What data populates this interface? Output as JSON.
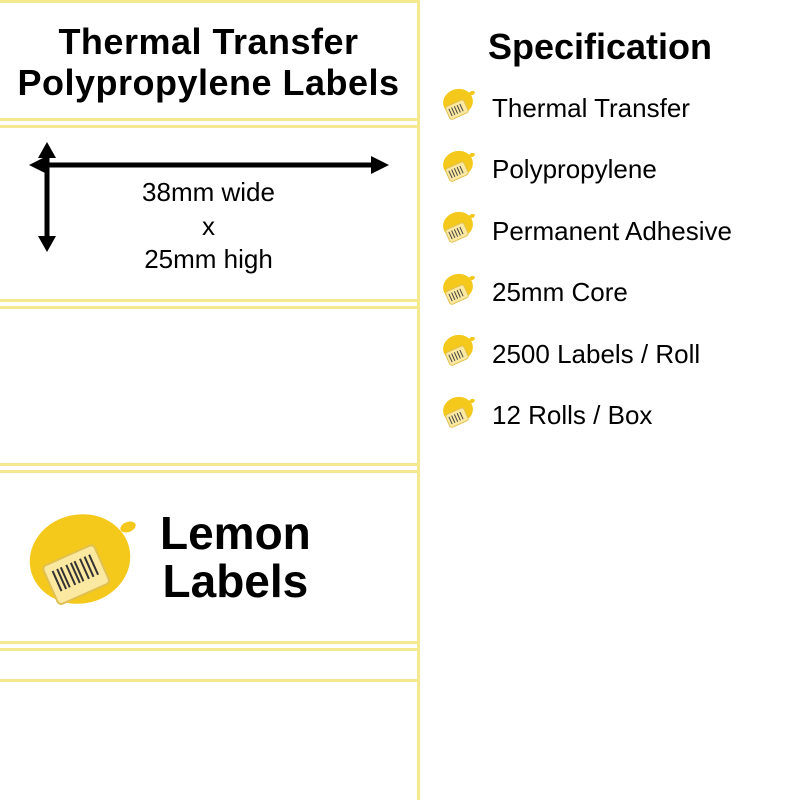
{
  "colors": {
    "lemon_yellow": "#f4c91b",
    "lemon_light": "#f9e36b",
    "outline": "#f4e98f",
    "text": "#000000",
    "white": "#ffffff",
    "barcode_tag": "#fbe8a1",
    "barcode_tag_border": "#e0c050"
  },
  "product": {
    "title": "Thermal Transfer Polypropylene Labels",
    "width_line": "38mm wide",
    "x": "x",
    "height_line": "25mm high"
  },
  "brand": {
    "line1": "Lemon",
    "line2": "Labels"
  },
  "spec": {
    "heading": "Specification",
    "items": [
      "Thermal Transfer",
      "Polypropylene",
      "Permanent Adhesive",
      "25mm Core",
      "2500 Labels / Roll",
      "12 Rolls / Box"
    ]
  }
}
